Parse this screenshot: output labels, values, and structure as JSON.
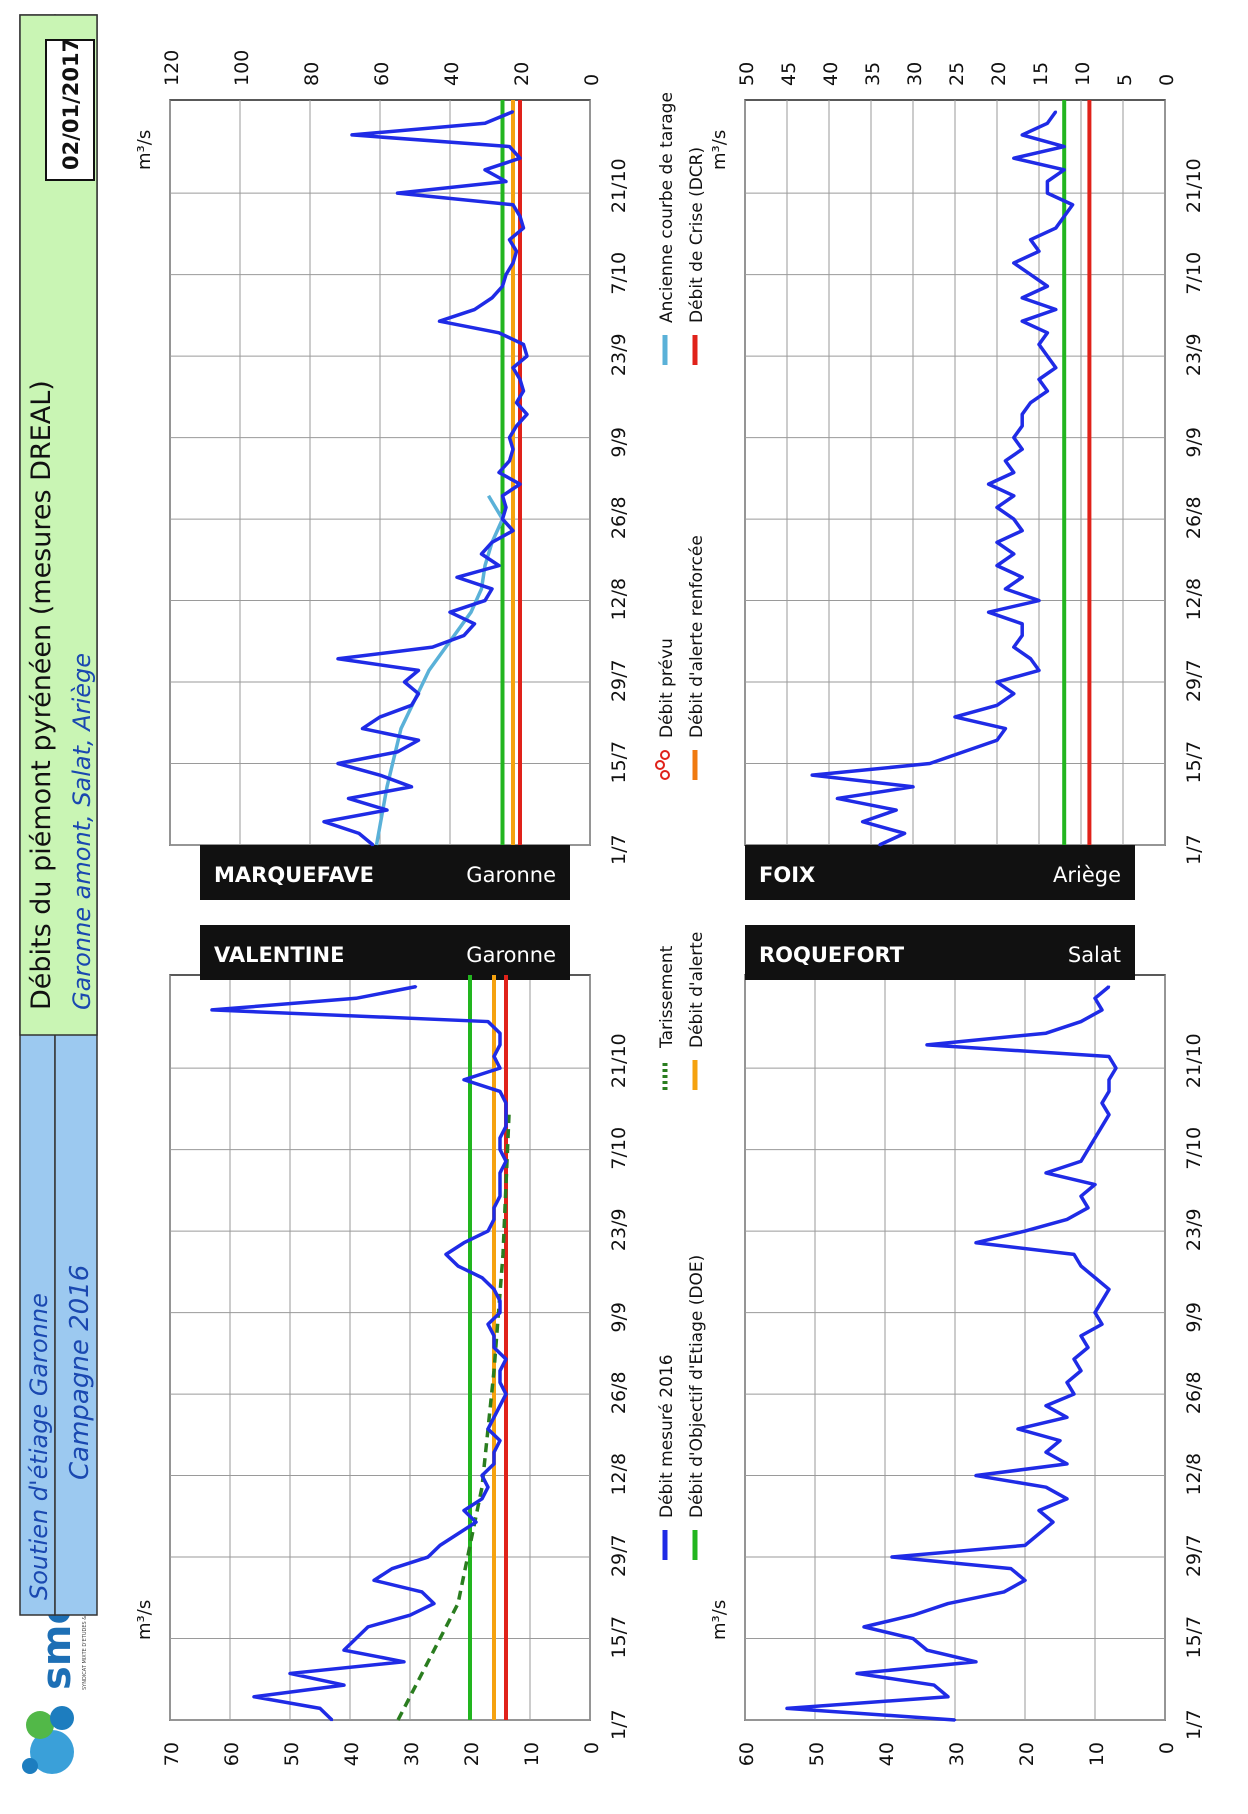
{
  "header": {
    "logo_text": "smeag",
    "logo_subtext": "SYNDICAT MIXTE D'ETUDES & D'AMENAGEMENT DE LA GARONNE",
    "program_label": "Soutien d'étiage Garonne",
    "campaign_label": "Campagne 2016",
    "title": "Débits du piémont pyrénéen (mesures DREAL)",
    "subtitle": "Garonne amont, Salat, Ariège",
    "date": "02/01/2017"
  },
  "legend": {
    "items": [
      {
        "label": "Débit mesuré 2016",
        "color": "#1f2be6",
        "style": "line"
      },
      {
        "label": "Débit d'Objectif d'Etiage (DOE)",
        "color": "#22b51f",
        "style": "line"
      },
      {
        "label": "Tarissement",
        "color": "#2a7d1f",
        "style": "dotted"
      },
      {
        "label": "Débit d'alerte",
        "color": "#f5a20f",
        "style": "line"
      },
      {
        "label": "Débit prévu",
        "color": "#e0221a",
        "style": "circles"
      },
      {
        "label": "Débit d'alerte renforcée",
        "color": "#f07a10",
        "style": "line"
      },
      {
        "label": "Ancienne courbe de tarage",
        "color": "#5ab1d8",
        "style": "line"
      },
      {
        "label": "Débit de Crise (DCR)",
        "color": "#e0221a",
        "style": "line"
      }
    ]
  },
  "colors": {
    "measured": "#1f2be6",
    "doe": "#22b51f",
    "alerte": "#f5a20f",
    "alerte_renforcee": "#f07a10",
    "crise": "#e0221a",
    "tarissement": "#2a7d1f",
    "ancienne": "#5ab1d8",
    "header_blue": "#9cc9f0",
    "header_green": "#c9f5b4"
  },
  "chart_data": [
    {
      "type": "line",
      "station": "VALENTINE",
      "river": "Garonne",
      "unit_label": "m³/s",
      "x_tick_labels": [
        "1/7",
        "15/7",
        "29/7",
        "12/8",
        "26/8",
        "9/9",
        "23/9",
        "7/10",
        "21/10"
      ],
      "y_ticks": [
        0,
        10,
        20,
        30,
        40,
        50,
        60,
        70
      ],
      "ylim": [
        0,
        70
      ],
      "x": [
        0,
        2,
        4,
        6,
        8,
        10,
        12,
        14,
        16,
        18,
        20,
        22,
        24,
        26,
        28,
        30,
        32,
        34,
        36,
        38,
        40,
        42,
        44,
        46,
        48,
        50,
        52,
        54,
        56,
        58,
        60,
        62,
        64,
        66,
        68,
        70,
        72,
        74,
        76,
        78,
        80,
        82,
        84,
        86,
        88,
        90,
        92,
        94,
        96,
        98,
        100,
        102,
        104,
        106,
        108,
        110,
        112,
        114,
        116,
        118,
        120,
        122,
        124,
        126
      ],
      "values": [
        43,
        45,
        56,
        41,
        50,
        31,
        41,
        39,
        37,
        30,
        26,
        28,
        36,
        33,
        27,
        25,
        22,
        19,
        21,
        18,
        17,
        18,
        16,
        16,
        15,
        17,
        16,
        15,
        14,
        15,
        15,
        14,
        16,
        16,
        17,
        15,
        15,
        16,
        18,
        22,
        24,
        21,
        17,
        16,
        16,
        15,
        15,
        15,
        14,
        15,
        15,
        14,
        14,
        14,
        15,
        21,
        15,
        16,
        15,
        15,
        17,
        63,
        39,
        29
      ],
      "doe": 20,
      "alerte": 16,
      "crise": 14,
      "tarissement": {
        "x": [
          0,
          20,
          40,
          60,
          80,
          104
        ],
        "values": [
          32,
          22,
          18,
          16,
          14.5,
          13.5
        ]
      }
    },
    {
      "type": "line",
      "station": "MARQUEFAVE",
      "river": "Garonne",
      "unit_label": "m³/s",
      "x_tick_labels": [
        "1/7",
        "15/7",
        "29/7",
        "12/8",
        "26/8",
        "9/9",
        "23/9",
        "7/10",
        "21/10"
      ],
      "y_ticks": [
        0,
        20,
        40,
        60,
        80,
        100,
        120
      ],
      "ylim": [
        0,
        120
      ],
      "x": [
        0,
        2,
        4,
        6,
        8,
        10,
        12,
        14,
        16,
        18,
        20,
        22,
        24,
        26,
        28,
        30,
        32,
        34,
        36,
        38,
        40,
        42,
        44,
        46,
        48,
        50,
        52,
        54,
        56,
        58,
        60,
        62,
        64,
        66,
        68,
        70,
        72,
        74,
        76,
        78,
        80,
        82,
        84,
        86,
        88,
        90,
        92,
        94,
        96,
        98,
        100,
        102,
        104,
        106,
        108,
        110,
        112,
        114,
        116,
        118,
        120,
        122,
        124,
        126
      ],
      "values": [
        62,
        66,
        76,
        58,
        69,
        51,
        60,
        72,
        55,
        49,
        65,
        60,
        51,
        49,
        53,
        49,
        72,
        45,
        36,
        33,
        40,
        30,
        28,
        38,
        26,
        31,
        28,
        22,
        25,
        24,
        25,
        20,
        26,
        23,
        22,
        23,
        21,
        18,
        21,
        19,
        20,
        22,
        18,
        19,
        26,
        43,
        33,
        28,
        25,
        24,
        22,
        21,
        23,
        19,
        20,
        22,
        55,
        24,
        30,
        20,
        23,
        68,
        30,
        22
      ],
      "ancienne": {
        "x": [
          0,
          10,
          20,
          30,
          40,
          44,
          48,
          52,
          56,
          60
        ],
        "values": [
          61,
          58,
          54,
          46,
          34,
          31,
          30,
          28,
          25,
          29
        ]
      },
      "doe": 25,
      "alerte": 22,
      "crise": 20
    },
    {
      "type": "line",
      "station": "ROQUEFORT",
      "river": "Salat",
      "unit_label": "m³/s",
      "x_tick_labels": [
        "1/7",
        "15/7",
        "29/7",
        "12/8",
        "26/8",
        "9/9",
        "23/9",
        "7/10",
        "21/10"
      ],
      "y_ticks": [
        0,
        10,
        20,
        30,
        40,
        50,
        60
      ],
      "ylim": [
        0,
        60
      ],
      "x": [
        0,
        2,
        4,
        6,
        8,
        10,
        12,
        14,
        16,
        18,
        20,
        22,
        24,
        26,
        28,
        30,
        32,
        34,
        36,
        38,
        40,
        42,
        44,
        46,
        48,
        50,
        52,
        54,
        56,
        58,
        60,
        62,
        64,
        66,
        68,
        70,
        72,
        74,
        76,
        78,
        80,
        82,
        84,
        86,
        88,
        90,
        92,
        94,
        96,
        98,
        100,
        102,
        104,
        106,
        108,
        110,
        112,
        114,
        116,
        118,
        120,
        122,
        124,
        126
      ],
      "values": [
        30,
        54,
        31,
        33,
        44,
        27,
        34,
        36,
        43,
        36,
        31,
        23,
        20,
        22,
        39,
        20,
        18,
        16,
        18,
        14,
        17,
        27,
        14,
        17,
        15,
        21,
        14,
        17,
        13,
        14,
        12,
        13,
        11,
        12,
        9,
        10,
        9,
        8,
        10,
        12,
        13,
        27,
        20,
        14,
        11,
        12,
        10,
        17,
        12,
        11,
        10,
        9,
        8,
        9,
        8,
        8,
        7,
        8,
        34,
        17,
        12,
        9,
        10,
        8
      ],
      "doe": null,
      "alerte": null,
      "crise": null
    },
    {
      "type": "line",
      "station": "FOIX",
      "river": "Ariège",
      "unit_label": "m³/s",
      "x_tick_labels": [
        "1/7",
        "15/7",
        "29/7",
        "12/8",
        "26/8",
        "9/9",
        "23/9",
        "7/10",
        "21/10"
      ],
      "y_ticks": [
        0,
        5,
        10,
        15,
        20,
        25,
        30,
        35,
        40,
        45,
        50
      ],
      "ylim": [
        0,
        50
      ],
      "x": [
        0,
        2,
        4,
        6,
        8,
        10,
        12,
        14,
        16,
        18,
        20,
        22,
        24,
        26,
        28,
        30,
        32,
        34,
        36,
        38,
        40,
        42,
        44,
        46,
        48,
        50,
        52,
        54,
        56,
        58,
        60,
        62,
        64,
        66,
        68,
        70,
        72,
        74,
        76,
        78,
        80,
        82,
        84,
        86,
        88,
        90,
        92,
        94,
        96,
        98,
        100,
        102,
        104,
        106,
        108,
        110,
        112,
        114,
        116,
        118,
        120,
        122,
        124,
        126
      ],
      "values": [
        34,
        31,
        36,
        32,
        39,
        30,
        42,
        28,
        24,
        20,
        19,
        25,
        20,
        18,
        20,
        15,
        16,
        18,
        17,
        17,
        21,
        15,
        19,
        17,
        20,
        18,
        20,
        17,
        18,
        20,
        18,
        21,
        18,
        19,
        17,
        18,
        17,
        17,
        16,
        14,
        15,
        13,
        14,
        15,
        14,
        17,
        13,
        17,
        14,
        16,
        18,
        15,
        16,
        13,
        12,
        11,
        14,
        14,
        12,
        18,
        12,
        17,
        14,
        13
      ],
      "doe": 12,
      "alerte": null,
      "crise": 9
    }
  ]
}
